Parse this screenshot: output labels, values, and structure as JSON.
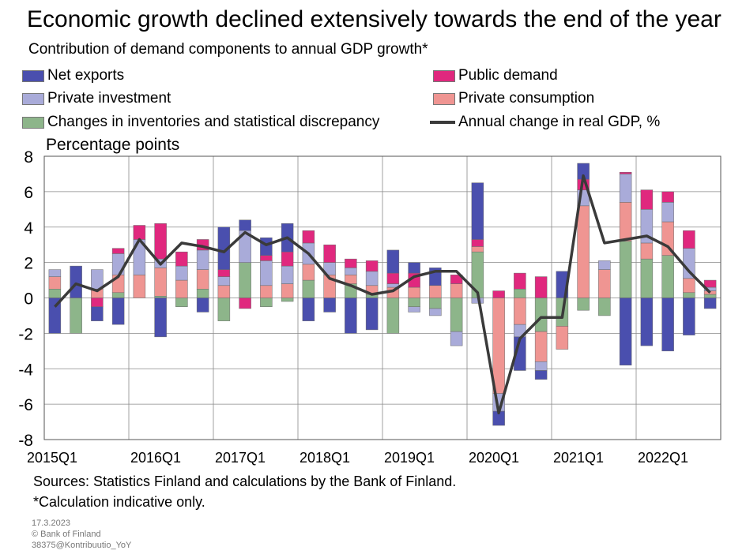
{
  "title": "Economic growth declined extensively towards the end of the year",
  "subtitle": "Contribution of demand components to annual GDP growth*",
  "legend": {
    "net_exports": "Net exports",
    "public_demand": "Public demand",
    "private_investment": "Private investment",
    "private_consumption": "Private consumption",
    "inventories": "Changes in inventories and statistical discrepancy",
    "gdp": "Annual change in real GDP, %"
  },
  "colors": {
    "net_exports": "#4a4fae",
    "public_demand": "#e0287e",
    "private_investment": "#a9abd9",
    "private_consumption": "#ef9592",
    "inventories": "#8db58a",
    "gdp": "#3a3a3a"
  },
  "y_axis_label": "Percentage points",
  "sources": "Sources: Statistics Finland and calculations by the Bank of Finland.",
  "note": "*Calculation indicative only.",
  "date": "17.3.2023",
  "copyright": "© Bank of Finland",
  "code": "38375@Kontribuutio_YoY",
  "chart_data": {
    "type": "bar",
    "stacked": true,
    "ylim": [
      -8,
      8
    ],
    "yticks": [
      -8,
      -6,
      -4,
      -2,
      0,
      2,
      4,
      6,
      8
    ],
    "xtick_labels": [
      "2015Q1",
      "2016Q1",
      "2017Q1",
      "2018Q1",
      "2019Q1",
      "2020Q1",
      "2021Q1",
      "2022Q1"
    ],
    "grid": true,
    "categories": [
      "2015Q1",
      "2015Q2",
      "2015Q3",
      "2015Q4",
      "2016Q1",
      "2016Q2",
      "2016Q3",
      "2016Q4",
      "2017Q1",
      "2017Q2",
      "2017Q3",
      "2017Q4",
      "2018Q1",
      "2018Q2",
      "2018Q3",
      "2018Q4",
      "2019Q1",
      "2019Q2",
      "2019Q3",
      "2019Q4",
      "2020Q1",
      "2020Q2",
      "2020Q3",
      "2020Q4",
      "2021Q1",
      "2021Q2",
      "2021Q3",
      "2021Q4",
      "2022Q1",
      "2022Q2",
      "2022Q3",
      "2022Q4"
    ],
    "series": [
      {
        "name": "Changes in inventories and statistical discrepancy",
        "key": "inventories",
        "values": [
          0.5,
          -2.0,
          0.0,
          0.3,
          0.0,
          0.1,
          -0.5,
          0.5,
          -1.3,
          2.0,
          -0.5,
          -0.2,
          1.0,
          0.0,
          0.8,
          0.2,
          -2.0,
          -0.5,
          -0.6,
          -1.9,
          2.6,
          0.0,
          0.5,
          -1.9,
          -1.6,
          -0.7,
          -1.0,
          3.2,
          2.2,
          2.4,
          0.3,
          0.2
        ]
      },
      {
        "name": "Private consumption",
        "key": "private_consumption",
        "values": [
          0.7,
          0.0,
          0.5,
          1.0,
          1.3,
          1.6,
          1.0,
          1.1,
          0.7,
          0.0,
          0.7,
          0.8,
          0.9,
          1.3,
          0.5,
          0.5,
          0.6,
          0.6,
          0.7,
          0.8,
          0.3,
          -5.4,
          -1.5,
          -1.7,
          -1.3,
          5.2,
          1.6,
          2.2,
          0.9,
          1.9,
          0.8,
          0.2
        ]
      },
      {
        "name": "Private investment",
        "key": "private_investment",
        "values": [
          0.4,
          0.0,
          1.1,
          1.2,
          2.0,
          0.5,
          0.8,
          1.1,
          0.5,
          1.8,
          1.4,
          1.0,
          1.2,
          0.7,
          0.4,
          0.8,
          0.2,
          -0.3,
          -0.4,
          -0.8,
          -0.3,
          -1.0,
          -0.7,
          -0.5,
          0.0,
          0.9,
          0.5,
          1.6,
          1.9,
          1.1,
          1.7,
          0.2
        ]
      },
      {
        "name": "Public demand",
        "key": "public_demand",
        "values": [
          0.0,
          0.0,
          -0.5,
          0.3,
          0.8,
          2.0,
          0.8,
          0.6,
          0.4,
          -0.6,
          0.3,
          0.8,
          0.7,
          1.0,
          0.5,
          0.6,
          0.6,
          0.8,
          0.0,
          0.5,
          0.4,
          0.4,
          0.9,
          1.2,
          0.0,
          0.6,
          0.0,
          0.1,
          1.1,
          0.6,
          1.0,
          0.4
        ]
      },
      {
        "name": "Net exports",
        "key": "net_exports",
        "values": [
          -2.0,
          1.8,
          -0.8,
          -1.5,
          0.0,
          -2.2,
          0.0,
          -0.8,
          2.4,
          0.6,
          1.0,
          1.6,
          -1.3,
          -0.8,
          -2.0,
          -1.8,
          1.3,
          0.6,
          1.0,
          0.0,
          3.2,
          -0.8,
          -1.9,
          -0.5,
          1.5,
          0.9,
          0.0,
          -3.8,
          -2.7,
          -3.0,
          -2.1,
          -0.6
        ]
      }
    ],
    "line": {
      "name": "Annual change in real GDP, %",
      "key": "gdp",
      "values": [
        -0.5,
        0.8,
        0.4,
        1.2,
        3.3,
        1.9,
        3.1,
        2.9,
        2.6,
        3.7,
        3.0,
        3.4,
        2.5,
        1.1,
        0.7,
        0.2,
        0.4,
        1.2,
        1.5,
        1.5,
        0.3,
        -6.5,
        -2.3,
        -1.1,
        -1.1,
        6.9,
        3.1,
        3.3,
        3.5,
        2.9,
        1.5,
        0.3
      ]
    }
  }
}
